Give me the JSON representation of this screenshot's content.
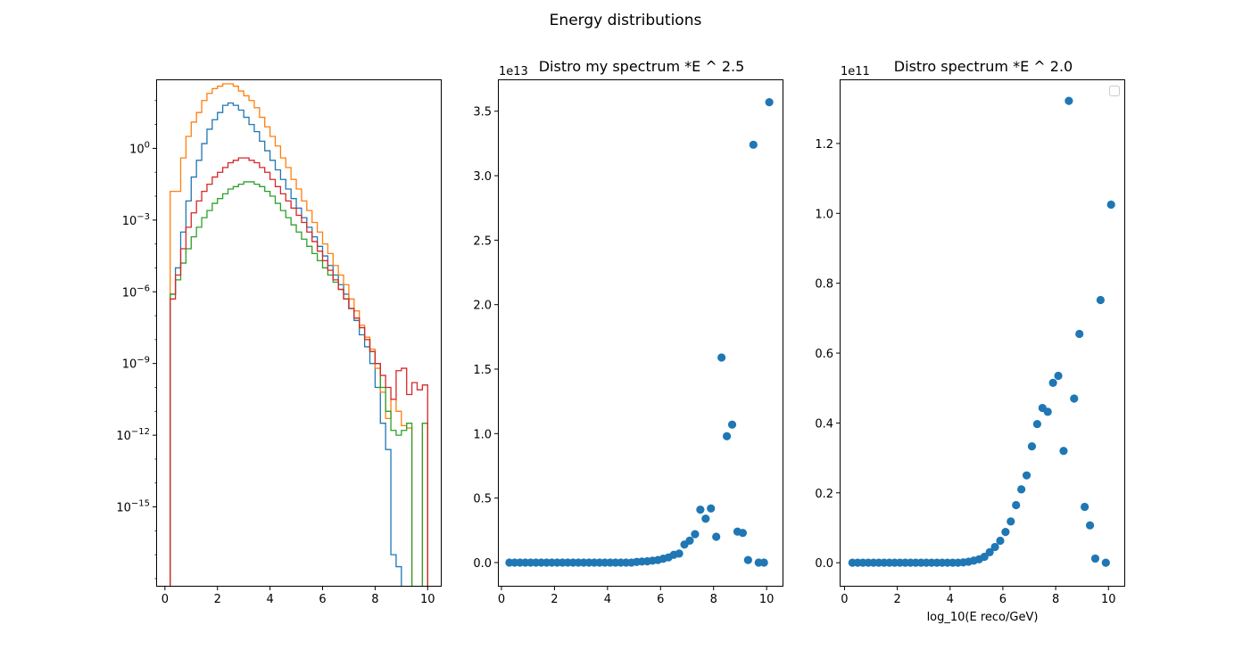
{
  "figure_title": "Energy distributions",
  "colors": {
    "series": [
      "#1f77b4",
      "#ff7f0e",
      "#2ca02c",
      "#d62728"
    ],
    "scatter": "#1f77b4"
  },
  "chart_data": [
    {
      "type": "histogram",
      "title": "",
      "xlabel": "",
      "ylabel": "",
      "yscale": "log",
      "xlim": [
        -0.3,
        10.5
      ],
      "ylim_log10": [
        -18.3,
        2.85
      ],
      "xticks": [
        0,
        2,
        4,
        6,
        8,
        10
      ],
      "yticks": [
        {
          "log10": 0,
          "label": "10^0"
        },
        {
          "log10": -3,
          "label": "10^−3"
        },
        {
          "log10": -6,
          "label": "10^−6"
        },
        {
          "log10": -9,
          "label": "10^−9"
        },
        {
          "log10": -12,
          "label": "10^−12"
        },
        {
          "log10": -15,
          "label": "10^−15"
        }
      ],
      "bin_edges": [
        0.2,
        0.4,
        0.6,
        0.8,
        1.0,
        1.2,
        1.4,
        1.6,
        1.8,
        2.0,
        2.2,
        2.4,
        2.6,
        2.8,
        3.0,
        3.2,
        3.4,
        3.6,
        3.8,
        4.0,
        4.2,
        4.4,
        4.6,
        4.8,
        5.0,
        5.2,
        5.4,
        5.6,
        5.8,
        6.0,
        6.2,
        6.4,
        6.6,
        6.8,
        7.0,
        7.2,
        7.4,
        7.6,
        7.8,
        8.0,
        8.2,
        8.4,
        8.6,
        8.8,
        9.0,
        9.2,
        9.4,
        9.6,
        9.8,
        10.0,
        10.2
      ],
      "series": [
        {
          "color_index": 0,
          "log10_counts": [
            -6.1,
            -5.0,
            -3.5,
            -2.2,
            -1.2,
            -0.5,
            0.2,
            0.8,
            1.2,
            1.5,
            1.8,
            1.9,
            1.8,
            1.6,
            1.3,
            1.0,
            0.7,
            0.3,
            -0.1,
            -0.5,
            -0.9,
            -1.3,
            -1.7,
            -2.1,
            -2.5,
            -2.9,
            -3.3,
            -3.7,
            -4.1,
            -4.5,
            -4.9,
            -5.3,
            -5.7,
            -6.1,
            -6.7,
            -7.2,
            -7.8,
            -8.3,
            -9.0,
            -10.0,
            -11.5,
            -12.6,
            -17.0,
            -17.5,
            null,
            null,
            null,
            null,
            null,
            null
          ]
        },
        {
          "color_index": 1,
          "log10_counts": [
            -1.8,
            -1.8,
            -0.4,
            0.5,
            1.1,
            1.5,
            2.0,
            2.3,
            2.5,
            2.6,
            2.7,
            2.7,
            2.6,
            2.4,
            2.2,
            2.0,
            1.7,
            1.3,
            0.9,
            0.5,
            0.1,
            -0.4,
            -0.8,
            -1.3,
            -1.7,
            -2.2,
            -2.6,
            -3.1,
            -3.5,
            -4.0,
            -4.4,
            -4.9,
            -5.3,
            -5.7,
            -6.3,
            -6.8,
            -7.4,
            -7.9,
            -8.4,
            -9.2,
            -10.2,
            -11.3,
            -10.5,
            -11.0,
            -11.6,
            -11.7,
            null,
            null,
            -11.5,
            null
          ]
        },
        {
          "color_index": 2,
          "log10_counts": [
            -6.1,
            -5.5,
            -4.8,
            -4.2,
            -3.7,
            -3.3,
            -2.9,
            -2.6,
            -2.3,
            -2.1,
            -1.9,
            -1.7,
            -1.6,
            -1.5,
            -1.4,
            -1.4,
            -1.5,
            -1.6,
            -1.8,
            -2.0,
            -2.3,
            -2.6,
            -2.9,
            -3.2,
            -3.5,
            -3.8,
            -4.1,
            -4.4,
            -4.7,
            -5.0,
            -5.3,
            -5.6,
            -5.9,
            -6.3,
            -6.7,
            -7.1,
            -7.5,
            -8.0,
            -8.5,
            -9.0,
            -10.0,
            -11.0,
            -11.8,
            -12.0,
            -11.8,
            -11.5,
            null,
            null,
            -11.5,
            null
          ]
        },
        {
          "color_index": 3,
          "log10_counts": [
            -6.3,
            -5.3,
            -4.2,
            -3.3,
            -2.7,
            -2.2,
            -1.8,
            -1.5,
            -1.2,
            -1.0,
            -0.8,
            -0.6,
            -0.5,
            -0.4,
            -0.4,
            -0.5,
            -0.6,
            -0.8,
            -1.0,
            -1.3,
            -1.6,
            -1.9,
            -2.2,
            -2.5,
            -2.8,
            -3.1,
            -3.5,
            -3.9,
            -4.3,
            -4.7,
            -5.1,
            -5.5,
            -5.9,
            -6.3,
            -6.7,
            -7.1,
            -7.5,
            -8.0,
            -8.5,
            -9.0,
            -9.5,
            -10.0,
            -10.5,
            -9.3,
            -9.2,
            -10.3,
            -9.8,
            -10.1,
            -9.9,
            null
          ]
        }
      ]
    },
    {
      "type": "scatter",
      "title": "Distro my spectrum *E ^ 2.5",
      "xlabel": "",
      "ylabel": "",
      "offset_text": "1e13",
      "xlim": [
        -0.1,
        10.6
      ],
      "ylim": [
        -0.18,
        3.74
      ],
      "xticks": [
        0,
        2,
        4,
        6,
        8,
        10
      ],
      "yticks": [
        0.0,
        0.5,
        1.0,
        1.5,
        2.0,
        2.5,
        3.0,
        3.5
      ],
      "ytick_labels": [
        "0.0",
        "0.5",
        "1.0",
        "1.5",
        "2.0",
        "2.5",
        "3.0",
        "3.5"
      ],
      "x": [
        0.3,
        0.5,
        0.7,
        0.9,
        1.1,
        1.3,
        1.5,
        1.7,
        1.9,
        2.1,
        2.3,
        2.5,
        2.7,
        2.9,
        3.1,
        3.3,
        3.5,
        3.7,
        3.9,
        4.1,
        4.3,
        4.5,
        4.7,
        4.9,
        5.1,
        5.3,
        5.5,
        5.7,
        5.9,
        6.1,
        6.3,
        6.5,
        6.7,
        6.9,
        7.1,
        7.3,
        7.5,
        7.7,
        7.9,
        8.1,
        8.3,
        8.5,
        8.7,
        8.9,
        9.1,
        9.3,
        9.5,
        9.7,
        9.9,
        10.1
      ],
      "y": [
        0.0,
        0.0,
        0.0,
        0.0,
        0.0,
        0.0,
        0.0,
        0.0,
        0.0,
        0.0,
        0.0,
        0.0,
        0.0,
        0.0,
        0.0,
        0.0,
        0.0,
        0.0,
        0.0,
        0.0,
        0.0,
        0.0,
        0.0,
        0.0,
        0.005,
        0.008,
        0.01,
        0.015,
        0.02,
        0.03,
        0.04,
        0.06,
        0.07,
        0.14,
        0.17,
        0.22,
        0.41,
        0.34,
        0.42,
        0.2,
        1.59,
        0.98,
        1.07,
        0.24,
        0.23,
        0.02,
        3.24,
        0.0,
        0.0,
        3.57
      ]
    },
    {
      "type": "scatter",
      "title": "Distro spectrum *E ^ 2.0",
      "xlabel": "log_10(E reco/GeV)",
      "ylabel": "",
      "offset_text": "1e11",
      "legend": "top-right",
      "xlim": [
        -0.15,
        10.6
      ],
      "ylim": [
        -0.066,
        1.381
      ],
      "xticks": [
        0,
        2,
        4,
        6,
        8,
        10
      ],
      "yticks": [
        0.0,
        0.2,
        0.4,
        0.6,
        0.8,
        1.0,
        1.2
      ],
      "ytick_labels": [
        "0.0",
        "0.2",
        "0.4",
        "0.6",
        "0.8",
        "1.0",
        "1.2"
      ],
      "x": [
        0.3,
        0.5,
        0.7,
        0.9,
        1.1,
        1.3,
        1.5,
        1.7,
        1.9,
        2.1,
        2.3,
        2.5,
        2.7,
        2.9,
        3.1,
        3.3,
        3.5,
        3.7,
        3.9,
        4.1,
        4.3,
        4.5,
        4.7,
        4.9,
        5.1,
        5.3,
        5.5,
        5.7,
        5.9,
        6.1,
        6.3,
        6.5,
        6.7,
        6.9,
        7.1,
        7.3,
        7.5,
        7.7,
        7.9,
        8.1,
        8.3,
        8.5,
        8.7,
        8.9,
        9.1,
        9.3,
        9.5,
        9.7,
        9.9,
        10.1
      ],
      "y": [
        0.0,
        0.0,
        0.0,
        0.0,
        0.0,
        0.0,
        0.0,
        0.0,
        0.0,
        0.0,
        0.0,
        0.0,
        0.0,
        0.0,
        0.0,
        0.0,
        0.0,
        0.0,
        0.0,
        0.0,
        0.0,
        0.001,
        0.003,
        0.006,
        0.01,
        0.017,
        0.03,
        0.045,
        0.063,
        0.088,
        0.118,
        0.165,
        0.21,
        0.25,
        0.333,
        0.397,
        0.443,
        0.432,
        0.515,
        0.535,
        0.32,
        1.322,
        0.47,
        0.655,
        0.16,
        0.107,
        0.012,
        0.752,
        0.0,
        1.025
      ]
    }
  ]
}
